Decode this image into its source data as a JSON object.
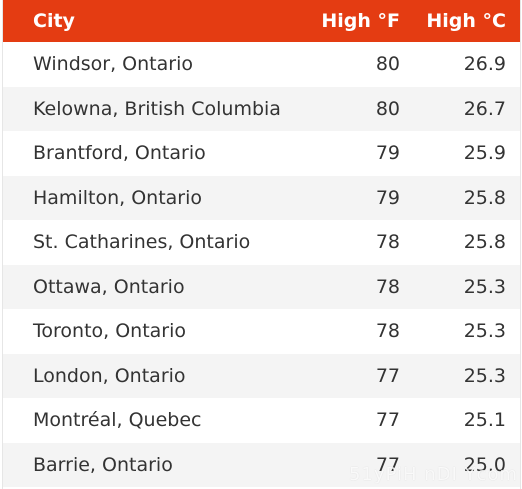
{
  "table": {
    "columns": [
      "City",
      "High °F",
      "High °C"
    ],
    "rows": [
      {
        "city": "Windsor, Ontario",
        "high_f": "80",
        "high_c": "26.9"
      },
      {
        "city": "Kelowna, British Columbia",
        "high_f": "80",
        "high_c": "26.7"
      },
      {
        "city": "Brantford, Ontario",
        "high_f": "79",
        "high_c": "25.9"
      },
      {
        "city": "Hamilton, Ontario",
        "high_f": "79",
        "high_c": "25.8"
      },
      {
        "city": "St. Catharines, Ontario",
        "high_f": "78",
        "high_c": "25.8"
      },
      {
        "city": "Ottawa, Ontario",
        "high_f": "78",
        "high_c": "25.3"
      },
      {
        "city": "Toronto, Ontario",
        "high_f": "78",
        "high_c": "25.3"
      },
      {
        "city": "London, Ontario",
        "high_f": "77",
        "high_c": "25.3"
      },
      {
        "city": "Montréal, Quebec",
        "high_f": "77",
        "high_c": "25.1"
      },
      {
        "city": "Barrie, Ontario",
        "high_f": "77",
        "high_c": "25.0"
      }
    ]
  },
  "watermark": "51yPiH nDI Ycom",
  "colors": {
    "header_bg": "#e43c12",
    "stripe": "#f4f4f4"
  }
}
